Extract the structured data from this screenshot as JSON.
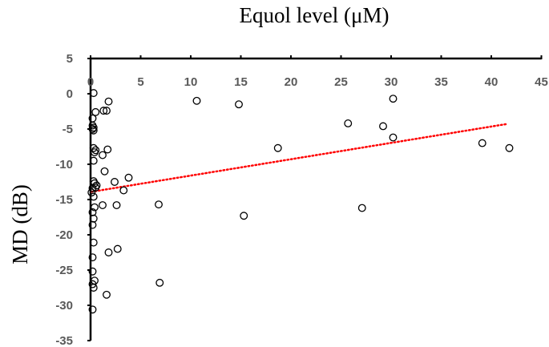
{
  "chart_data": {
    "type": "scatter",
    "title": "Equol level (μM)",
    "xlabel": "",
    "ylabel": "MD (dB)",
    "xlim": [
      0,
      45
    ],
    "ylim": [
      -35,
      5
    ],
    "x_ticks": [
      "0",
      "5",
      "10",
      "15",
      "20",
      "25",
      "30",
      "35",
      "40",
      "45"
    ],
    "y_ticks": [
      "5",
      "0",
      "-5",
      "-10",
      "-15",
      "-20",
      "-25",
      "-30",
      "-35"
    ],
    "x_axis_position": "top",
    "grid": false,
    "marker_color": "#000000",
    "trendline_color": "#ff0000",
    "trendline": {
      "style": "dotted",
      "x": [
        0.1,
        41.5
      ],
      "y": [
        -13.9,
        -4.3
      ]
    },
    "points": [
      [
        0.3,
        0.1
      ],
      [
        1.8,
        -1.1
      ],
      [
        0.5,
        -2.6
      ],
      [
        1.3,
        -2.4
      ],
      [
        1.6,
        -2.4
      ],
      [
        0.2,
        -3.5
      ],
      [
        0.2,
        -4.5
      ],
      [
        0.3,
        -4.8
      ],
      [
        0.2,
        -5.0
      ],
      [
        0.3,
        -5.2
      ],
      [
        0.3,
        -7.7
      ],
      [
        0.5,
        -8.0
      ],
      [
        0.4,
        -8.3
      ],
      [
        1.7,
        -7.9
      ],
      [
        1.2,
        -8.7
      ],
      [
        0.3,
        -9.5
      ],
      [
        1.4,
        -11.0
      ],
      [
        2.4,
        -12.5
      ],
      [
        3.8,
        -11.9
      ],
      [
        3.3,
        -13.7
      ],
      [
        0.3,
        -12.4
      ],
      [
        0.4,
        -12.7
      ],
      [
        0.6,
        -13.0
      ],
      [
        0.2,
        -13.4
      ],
      [
        0.5,
        -13.3
      ],
      [
        0.1,
        -14.0
      ],
      [
        0.3,
        -14.6
      ],
      [
        1.2,
        -15.8
      ],
      [
        2.6,
        -15.8
      ],
      [
        6.8,
        -15.7
      ],
      [
        0.4,
        -16.1
      ],
      [
        0.2,
        -16.8
      ],
      [
        0.3,
        -17.7
      ],
      [
        0.2,
        -18.6
      ],
      [
        0.3,
        -21.1
      ],
      [
        2.7,
        -22.0
      ],
      [
        1.8,
        -22.5
      ],
      [
        0.2,
        -23.2
      ],
      [
        0.2,
        -25.2
      ],
      [
        0.4,
        -26.5
      ],
      [
        0.2,
        -27.0
      ],
      [
        0.3,
        -27.5
      ],
      [
        6.9,
        -26.8
      ],
      [
        1.6,
        -28.5
      ],
      [
        0.2,
        -30.6
      ],
      [
        10.6,
        -1.0
      ],
      [
        14.8,
        -1.5
      ],
      [
        18.7,
        -7.7
      ],
      [
        15.3,
        -17.3
      ],
      [
        25.7,
        -4.2
      ],
      [
        27.1,
        -16.2
      ],
      [
        29.2,
        -4.6
      ],
      [
        30.2,
        -0.7
      ],
      [
        30.2,
        -6.2
      ],
      [
        39.1,
        -7.0
      ],
      [
        41.8,
        -7.7
      ]
    ]
  }
}
